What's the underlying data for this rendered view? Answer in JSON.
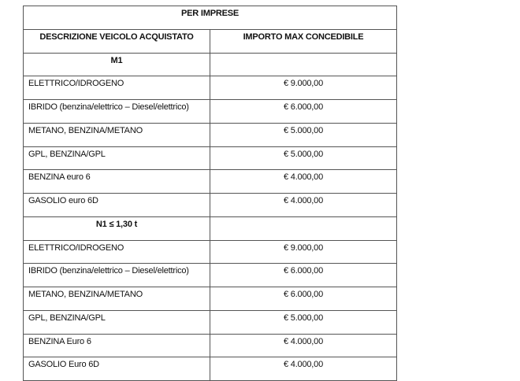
{
  "table": {
    "title": "PER IMPRESE",
    "headers": [
      "DESCRIZIONE VEICOLO ACQUISTATO",
      "IMPORTO MAX CONCEDIBILE"
    ],
    "sections": [
      {
        "label": "M1",
        "rows": [
          {
            "desc": "ELETTRICO/IDROGENO",
            "amount": "€ 9.000,00"
          },
          {
            "desc": "IBRIDO (benzina/elettrico – Diesel/elettrico)",
            "amount": "€ 6.000,00"
          },
          {
            "desc": "METANO, BENZINA/METANO",
            "amount": "€ 5.000,00"
          },
          {
            "desc": "GPL, BENZINA/GPL",
            "amount": "€ 5.000,00"
          },
          {
            "desc": "BENZINA euro 6",
            "amount": "€ 4.000,00"
          },
          {
            "desc": "GASOLIO euro 6D",
            "amount": "€ 4.000,00"
          }
        ]
      },
      {
        "label": "N1 ≤ 1,30 t",
        "rows": [
          {
            "desc": "ELETTRICO/IDROGENO",
            "amount": "€ 9.000,00"
          },
          {
            "desc": "IBRIDO (benzina/elettrico – Diesel/elettrico)",
            "amount": "€ 6.000,00"
          },
          {
            "desc": "METANO, BENZINA/METANO",
            "amount": "€ 6.000,00"
          },
          {
            "desc": "GPL, BENZINA/GPL",
            "amount": "€ 5.000,00"
          },
          {
            "desc": "BENZINA  Euro 6",
            "amount": "€ 4.000,00"
          },
          {
            "desc": "GASOLIO Euro 6D",
            "amount": "€ 4.000,00"
          }
        ]
      }
    ]
  }
}
